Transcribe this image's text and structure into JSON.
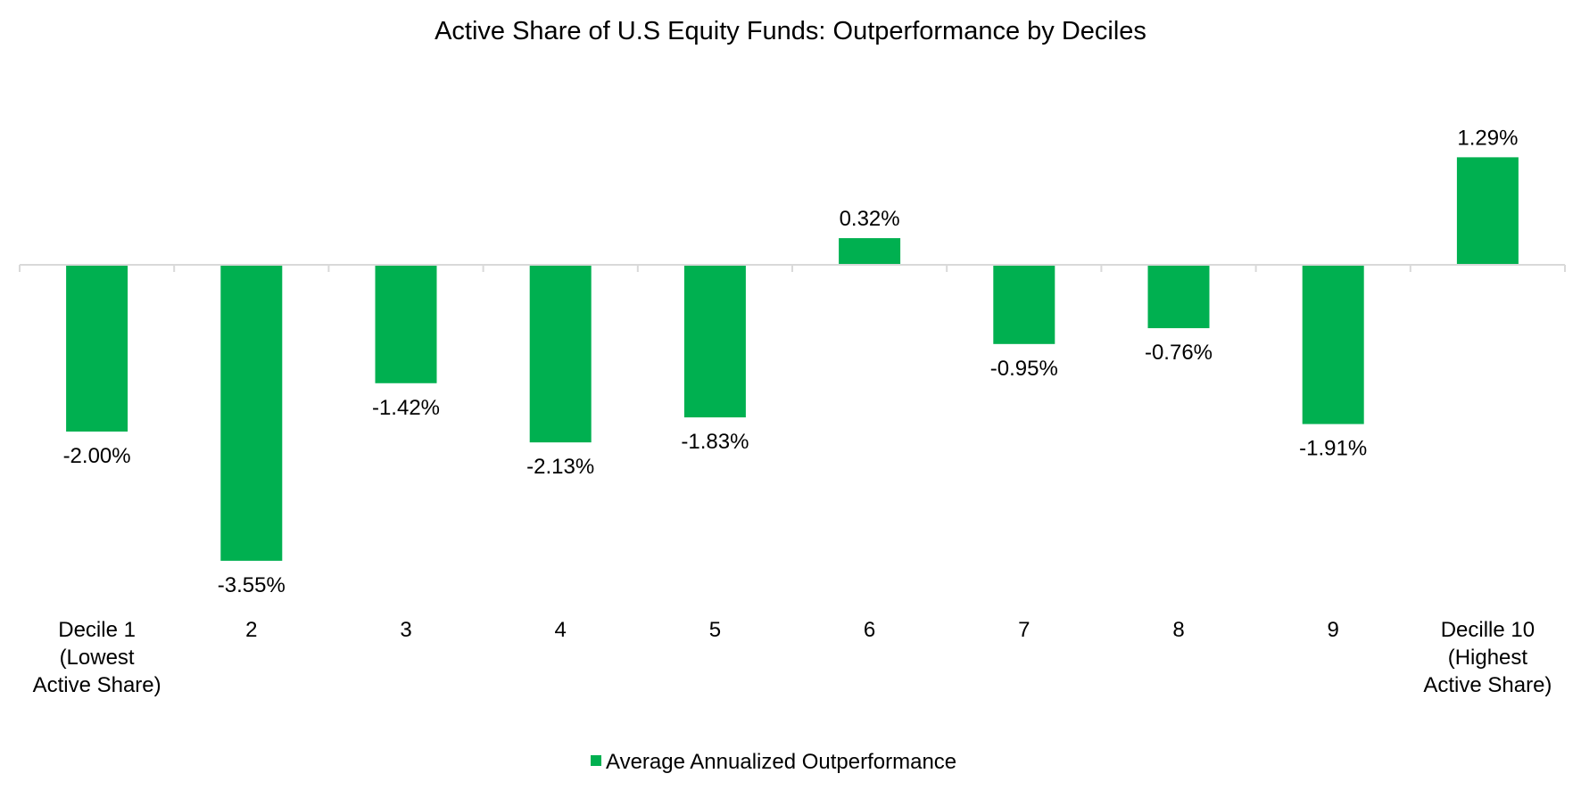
{
  "chart_data": {
    "type": "bar",
    "title": "Active Share of U.S Equity Funds: Outperformance by Deciles",
    "categories": [
      [
        "Decile 1",
        "(Lowest",
        "Active Share)"
      ],
      [
        "2"
      ],
      [
        "3"
      ],
      [
        "4"
      ],
      [
        "5"
      ],
      [
        "6"
      ],
      [
        "7"
      ],
      [
        "8"
      ],
      [
        "9"
      ],
      [
        "Decille 10",
        "(Highest",
        "Active Share)"
      ]
    ],
    "series": [
      {
        "name": "Average Annualized Outperformance",
        "color": "#00B050",
        "values": [
          -2.0,
          -3.55,
          -1.42,
          -2.13,
          -1.83,
          0.32,
          -0.95,
          -0.76,
          -1.91,
          1.29
        ],
        "labels": [
          "-2.00%",
          "-3.55%",
          "-1.42%",
          "-2.13%",
          "-1.83%",
          "0.32%",
          "-0.95%",
          "-0.76%",
          "-1.91%",
          "1.29%"
        ]
      }
    ],
    "xlabel": "",
    "ylabel": "",
    "ylim": [
      -3.55,
      1.29
    ],
    "grid": false,
    "legend": "bottom-center",
    "axis_color": "#D9D9D9"
  }
}
